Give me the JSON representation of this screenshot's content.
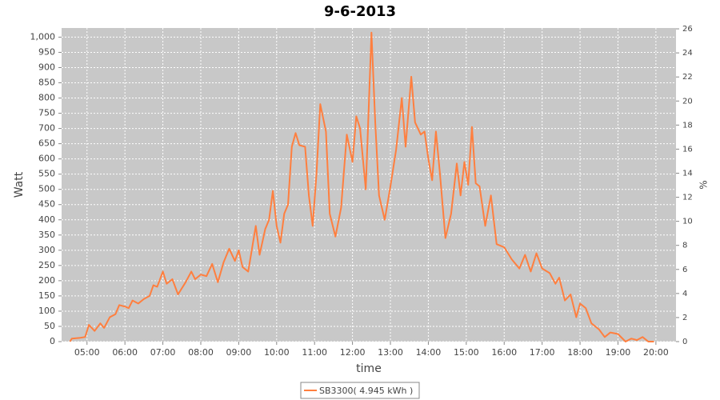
{
  "chart_data": {
    "type": "line",
    "title": "9-6-2013",
    "x_label": "time",
    "y_label": "Watt",
    "y2_label": "%",
    "x": [
      4.55,
      4.6,
      4.8,
      4.95,
      5.05,
      5.2,
      5.35,
      5.45,
      5.6,
      5.75,
      5.85,
      6.0,
      6.1,
      6.2,
      6.35,
      6.5,
      6.65,
      6.75,
      6.85,
      7.0,
      7.1,
      7.25,
      7.4,
      7.6,
      7.75,
      7.85,
      8.0,
      8.15,
      8.3,
      8.45,
      8.6,
      8.75,
      8.9,
      9.0,
      9.1,
      9.25,
      9.45,
      9.55,
      9.7,
      9.8,
      9.9,
      10.0,
      10.1,
      10.2,
      10.3,
      10.4,
      10.5,
      10.6,
      10.75,
      10.85,
      10.95,
      11.05,
      11.15,
      11.3,
      11.4,
      11.55,
      11.7,
      11.85,
      12.0,
      12.1,
      12.2,
      12.35,
      12.5,
      12.6,
      12.7,
      12.85,
      13.0,
      13.15,
      13.3,
      13.4,
      13.55,
      13.65,
      13.8,
      13.9,
      14.0,
      14.1,
      14.2,
      14.3,
      14.45,
      14.6,
      14.75,
      14.85,
      14.95,
      15.05,
      15.15,
      15.25,
      15.35,
      15.5,
      15.65,
      15.8,
      16.0,
      16.2,
      16.4,
      16.55,
      16.7,
      16.85,
      17.0,
      17.2,
      17.35,
      17.45,
      17.6,
      17.75,
      17.9,
      18.0,
      18.15,
      18.3,
      18.5,
      18.65,
      18.8,
      19.0,
      19.2,
      19.35,
      19.5,
      19.65,
      19.8,
      19.95
    ],
    "series": [
      {
        "name": "SB3300( 4.945 kWh )",
        "color": "#ff7f3f",
        "values": [
          0,
          10,
          12,
          15,
          55,
          35,
          60,
          45,
          80,
          90,
          120,
          115,
          110,
          135,
          125,
          140,
          150,
          185,
          180,
          230,
          190,
          205,
          155,
          195,
          230,
          205,
          220,
          215,
          255,
          195,
          260,
          305,
          265,
          300,
          245,
          230,
          380,
          285,
          370,
          400,
          495,
          380,
          325,
          420,
          450,
          640,
          685,
          645,
          640,
          480,
          380,
          550,
          780,
          690,
          420,
          345,
          440,
          680,
          590,
          740,
          700,
          500,
          1015,
          720,
          480,
          400,
          510,
          630,
          800,
          640,
          870,
          720,
          680,
          690,
          600,
          530,
          690,
          560,
          340,
          420,
          585,
          480,
          590,
          515,
          705,
          520,
          510,
          380,
          480,
          320,
          310,
          270,
          240,
          285,
          230,
          290,
          240,
          225,
          190,
          210,
          135,
          155,
          80,
          125,
          110,
          60,
          40,
          15,
          30,
          25,
          0,
          10,
          5,
          15,
          0,
          0
        ]
      }
    ],
    "xlim": [
      4.33,
      20.53
    ],
    "xticks": [
      {
        "value": 5,
        "label": "05:00"
      },
      {
        "value": 6,
        "label": "06:00"
      },
      {
        "value": 7,
        "label": "07:00"
      },
      {
        "value": 8,
        "label": "08:00"
      },
      {
        "value": 9,
        "label": "09:00"
      },
      {
        "value": 10,
        "label": "10:00"
      },
      {
        "value": 11,
        "label": "11:00"
      },
      {
        "value": 12,
        "label": "12:00"
      },
      {
        "value": 13,
        "label": "13:00"
      },
      {
        "value": 14,
        "label": "14:00"
      },
      {
        "value": 15,
        "label": "15:00"
      },
      {
        "value": 16,
        "label": "16:00"
      },
      {
        "value": 17,
        "label": "17:00"
      },
      {
        "value": 18,
        "label": "18:00"
      },
      {
        "value": 19,
        "label": "19:00"
      },
      {
        "value": 20,
        "label": "20:00"
      }
    ],
    "ylim": [
      0,
      1030
    ],
    "yticks": [
      0,
      50,
      100,
      150,
      200,
      250,
      300,
      350,
      400,
      450,
      500,
      550,
      600,
      650,
      700,
      750,
      800,
      850,
      900,
      950,
      {
        "value": 1000,
        "label": "1,000"
      }
    ],
    "y2lim": [
      0,
      26.07
    ],
    "y2ticks": [
      0,
      2,
      4,
      6,
      8,
      10,
      12,
      14,
      16,
      18,
      20,
      22,
      24,
      26
    ],
    "grid": true
  }
}
